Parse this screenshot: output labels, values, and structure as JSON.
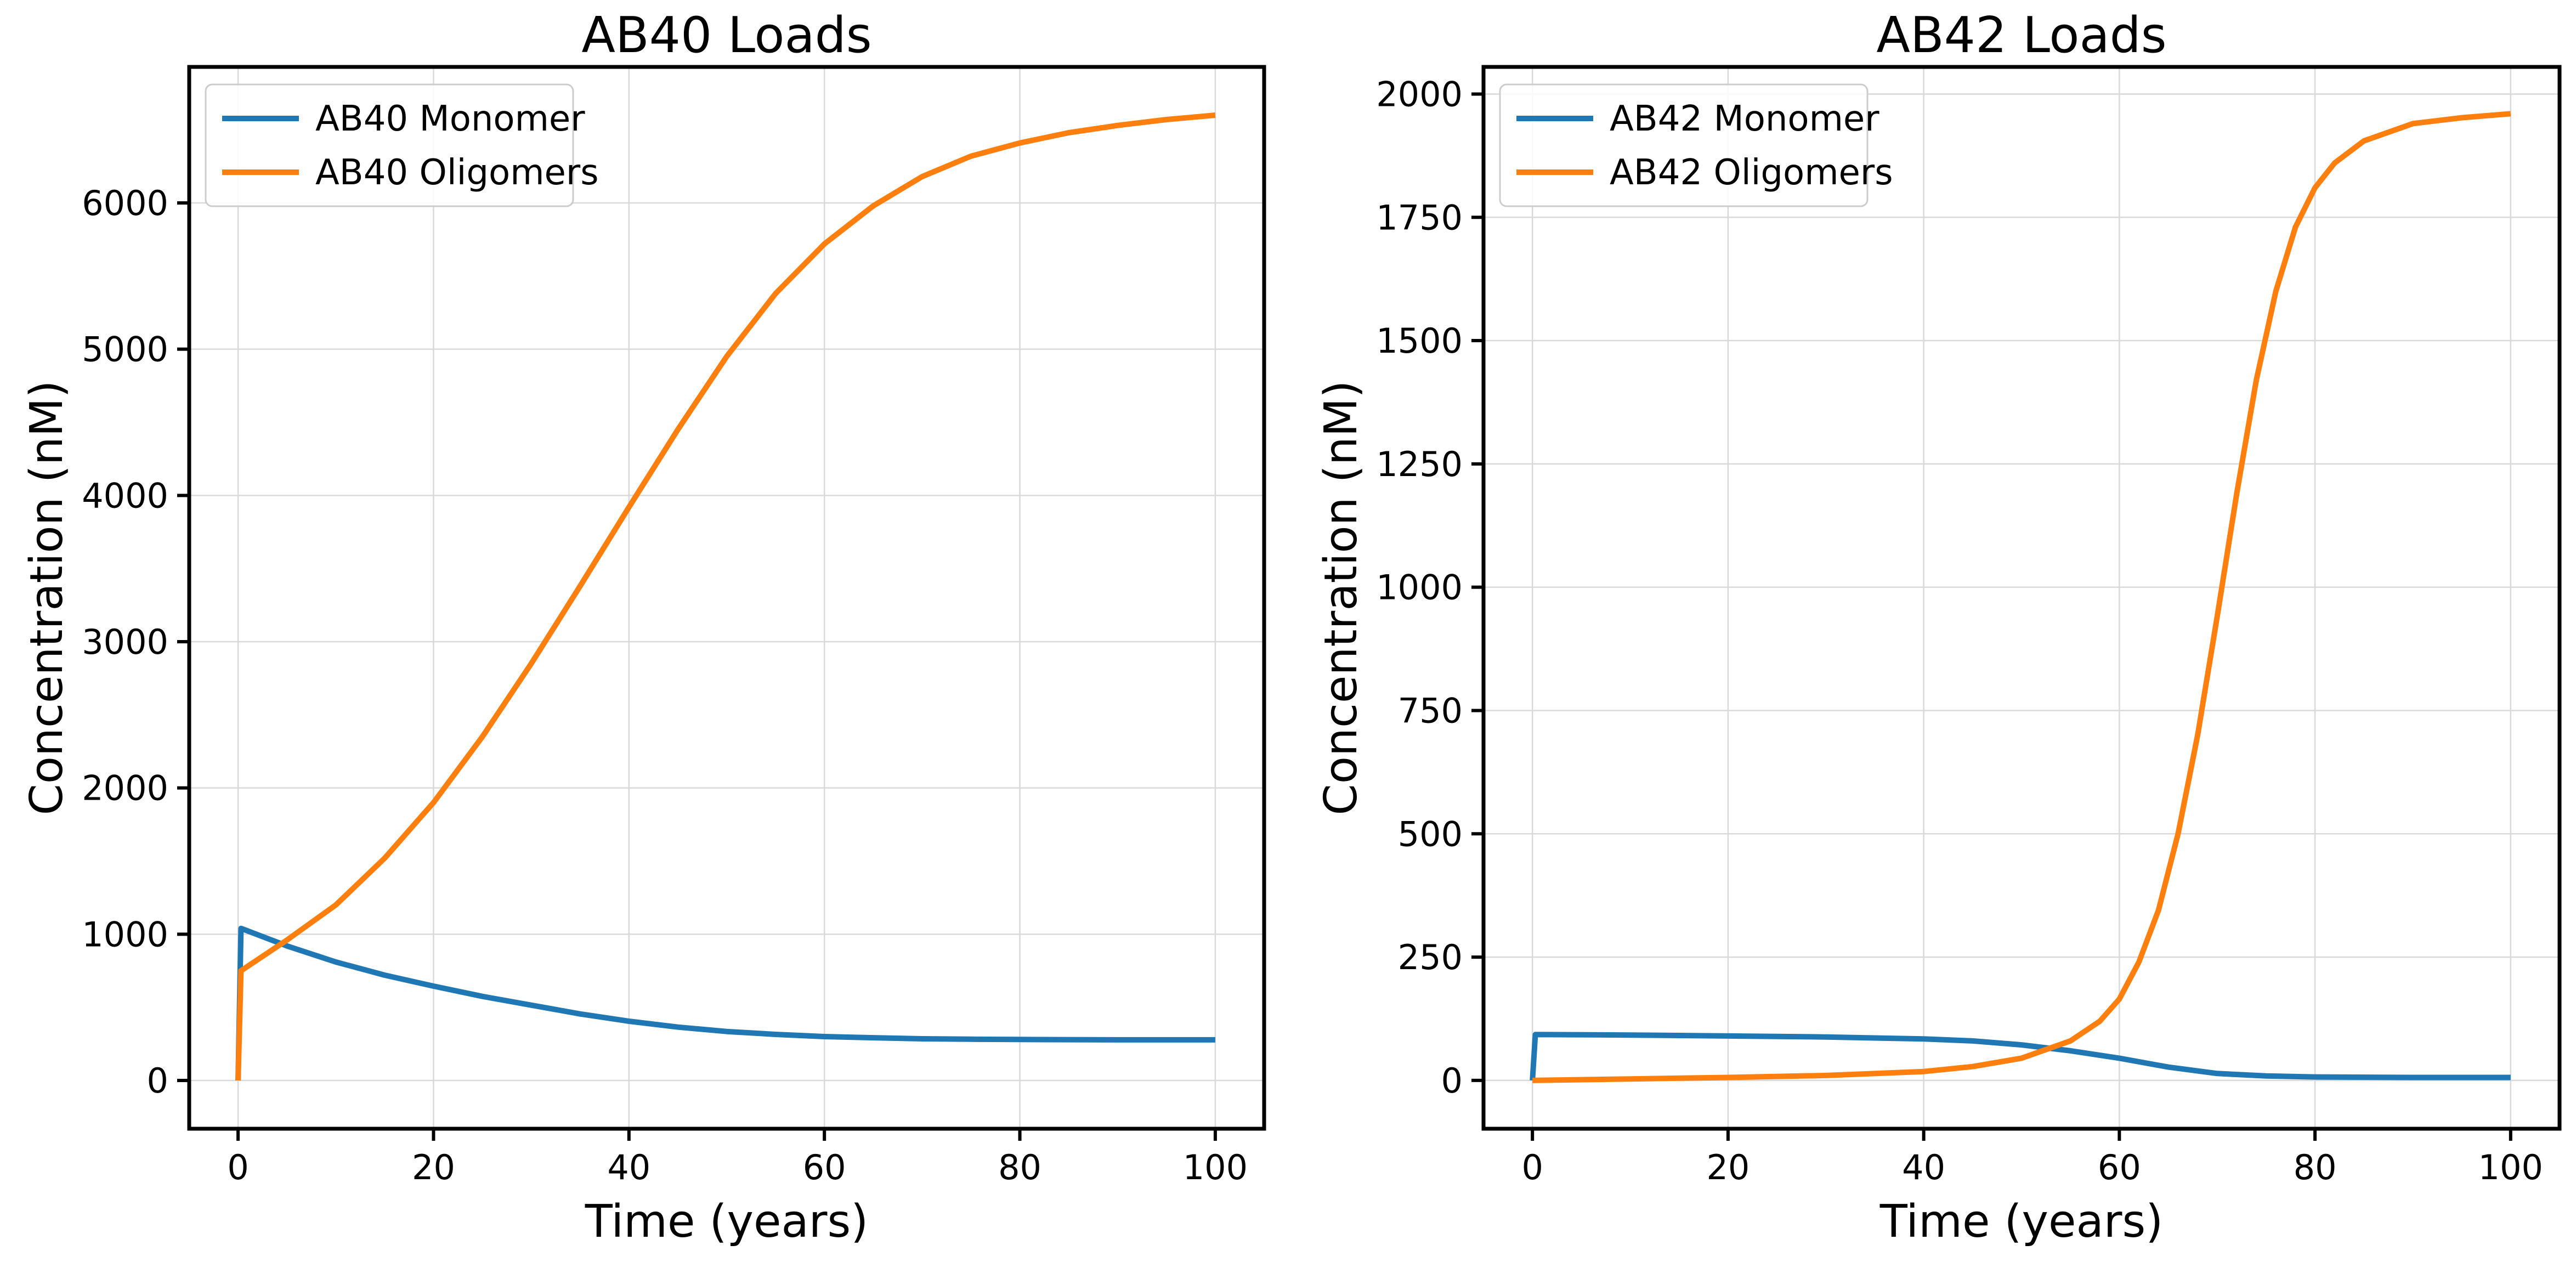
{
  "colors": {
    "monomer": "#1f77b4",
    "oligomers": "#ff7f0e"
  },
  "chart_data": [
    {
      "type": "line",
      "title": "AB40 Loads",
      "xlabel": "Time (years)",
      "ylabel": "Concentration (nM)",
      "xlim": [
        -5,
        105
      ],
      "ylim": [
        -330,
        6930
      ],
      "xticks": [
        0,
        20,
        40,
        60,
        80,
        100
      ],
      "yticks": [
        0,
        1000,
        2000,
        3000,
        4000,
        5000,
        6000
      ],
      "grid": true,
      "legend_position": "upper-left",
      "series": [
        {
          "name": "AB40 Monomer",
          "color": "#1f77b4",
          "x": [
            0,
            0.3,
            5,
            10,
            15,
            20,
            25,
            30,
            35,
            40,
            45,
            50,
            55,
            60,
            65,
            70,
            75,
            80,
            85,
            90,
            95,
            100
          ],
          "y": [
            0,
            1040,
            920,
            810,
            720,
            645,
            575,
            515,
            455,
            405,
            365,
            335,
            315,
            300,
            292,
            285,
            282,
            280,
            279,
            278,
            278,
            278
          ]
        },
        {
          "name": "AB40 Oligomers",
          "color": "#ff7f0e",
          "x": [
            0,
            0.3,
            5,
            10,
            15,
            20,
            25,
            30,
            35,
            40,
            45,
            50,
            55,
            60,
            65,
            70,
            75,
            80,
            85,
            90,
            95,
            100
          ],
          "y": [
            0,
            750,
            960,
            1200,
            1520,
            1900,
            2350,
            2850,
            3380,
            3920,
            4450,
            4950,
            5380,
            5720,
            5980,
            6180,
            6320,
            6410,
            6480,
            6530,
            6570,
            6600
          ]
        }
      ]
    },
    {
      "type": "line",
      "title": "AB42 Loads",
      "xlabel": "Time (years)",
      "ylabel": "Concentration (nM)",
      "xlim": [
        -5,
        105
      ],
      "ylim": [
        -98,
        2055
      ],
      "xticks": [
        0,
        20,
        40,
        60,
        80,
        100
      ],
      "yticks": [
        0,
        250,
        500,
        750,
        1000,
        1250,
        1500,
        1750,
        2000
      ],
      "grid": true,
      "legend_position": "upper-left",
      "series": [
        {
          "name": "AB42 Monomer",
          "color": "#1f77b4",
          "x": [
            0,
            0.3,
            10,
            20,
            30,
            40,
            45,
            50,
            55,
            60,
            65,
            70,
            75,
            80,
            90,
            100
          ],
          "y": [
            0,
            93,
            92,
            90,
            88,
            84,
            80,
            72,
            60,
            45,
            27,
            14,
            9,
            7,
            6,
            6
          ],
          "color_key": "monomer"
        },
        {
          "name": "AB42 Oligomers",
          "color": "#ff7f0e",
          "x": [
            0,
            10,
            20,
            30,
            40,
            45,
            50,
            55,
            58,
            60,
            62,
            64,
            66,
            68,
            70,
            72,
            74,
            76,
            78,
            80,
            82,
            85,
            90,
            95,
            100
          ],
          "y": [
            0,
            3,
            6,
            10,
            18,
            28,
            45,
            80,
            120,
            165,
            240,
            345,
            500,
            700,
            940,
            1190,
            1420,
            1600,
            1730,
            1810,
            1860,
            1905,
            1940,
            1952,
            1960
          ]
        }
      ]
    }
  ]
}
